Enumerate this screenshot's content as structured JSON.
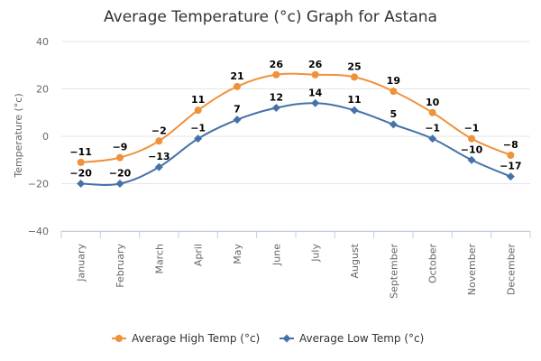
{
  "chart_data": {
    "type": "line",
    "title": "Average Temperature (°c) Graph for Astana",
    "ylabel": "Temperature (°c)",
    "xlabel": "",
    "ylim": [
      -40,
      40
    ],
    "yticks": [
      40,
      20,
      0,
      -20,
      -40
    ],
    "categories": [
      "January",
      "February",
      "March",
      "April",
      "May",
      "June",
      "July",
      "August",
      "September",
      "October",
      "November",
      "December"
    ],
    "series": [
      {
        "name": "Average High Temp (°c)",
        "color": "#f0913b",
        "marker": "circle",
        "values": [
          -11,
          -9,
          -2,
          11,
          21,
          26,
          26,
          25,
          19,
          10,
          -1,
          -8
        ],
        "labels": [
          "−11",
          "−9",
          "−2",
          "11",
          "21",
          "26",
          "26",
          "25",
          "19",
          "10",
          "−1",
          "−8"
        ]
      },
      {
        "name": "Average Low Temp (°c)",
        "color": "#4572a7",
        "marker": "diamond",
        "values": [
          -20,
          -20,
          -13,
          -1,
          7,
          12,
          14,
          11,
          5,
          -1,
          -10,
          -17
        ],
        "labels": [
          "−20",
          "−20",
          "−13",
          "−1",
          "7",
          "12",
          "14",
          "11",
          "5",
          "−1",
          "−10",
          "−17"
        ]
      }
    ],
    "grid": true,
    "legend_position": "bottom"
  }
}
